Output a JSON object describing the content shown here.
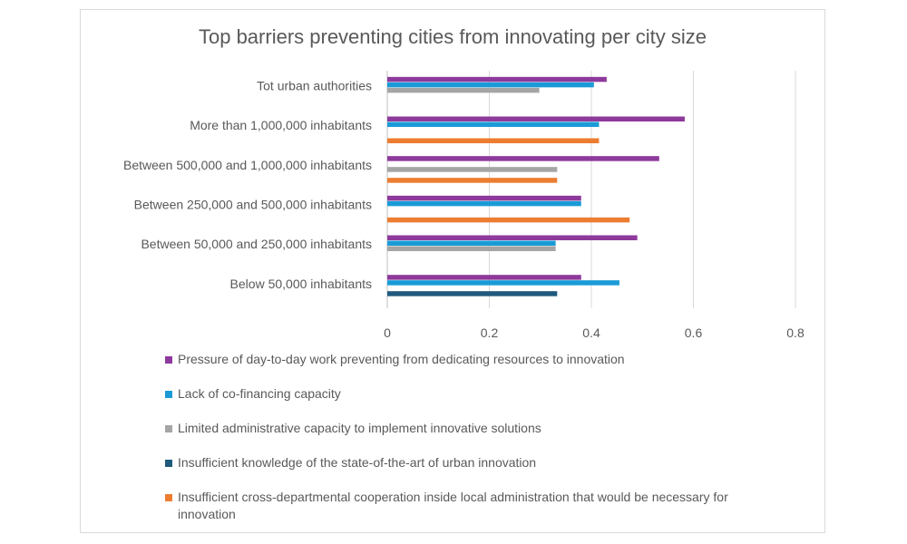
{
  "chart_data": {
    "type": "bar",
    "orientation": "horizontal",
    "title": "Top barriers preventing cities from innovating per city size",
    "categories": [
      "Tot urban authorities",
      "More than 1,000,000 inhabitants",
      "Between 500,000 and 1,000,000 inhabitants",
      "Between 250,000 and 500,000 inhabitants",
      "Between 50,000 and 250,000 inhabitants",
      "Below 50,000 inhabitants"
    ],
    "series": [
      {
        "name": "Pressure of day-to-day work preventing from dedicating resources to innovation",
        "color": "#8e3a9c",
        "values": [
          0.43,
          0.583,
          0.533,
          0.38,
          0.49,
          0.38
        ]
      },
      {
        "name": "Lack of co-financing capacity",
        "color": "#1a9bd7",
        "values": [
          0.405,
          0.415,
          null,
          0.38,
          0.33,
          0.455
        ]
      },
      {
        "name": "Limited administrative capacity to implement innovative solutions",
        "color": "#a5a5a5",
        "values": [
          0.298,
          null,
          0.333,
          null,
          0.33,
          null
        ]
      },
      {
        "name": "Insufficient knowledge of the state-of-the-art of urban innovation",
        "color": "#1f5a7d",
        "values": [
          null,
          null,
          null,
          null,
          null,
          0.333
        ]
      },
      {
        "name": "Insufficient cross-departmental cooperation inside local administration that would be necessary for innovation",
        "color": "#ed7d31",
        "values": [
          null,
          0.415,
          0.333,
          0.475,
          null,
          null
        ]
      }
    ],
    "x_ticks": [
      "0",
      "0.2",
      "0.4",
      "0.6",
      "0.8"
    ],
    "xlim": [
      0,
      0.8
    ],
    "grid": "vertical",
    "legend_position": "bottom"
  }
}
